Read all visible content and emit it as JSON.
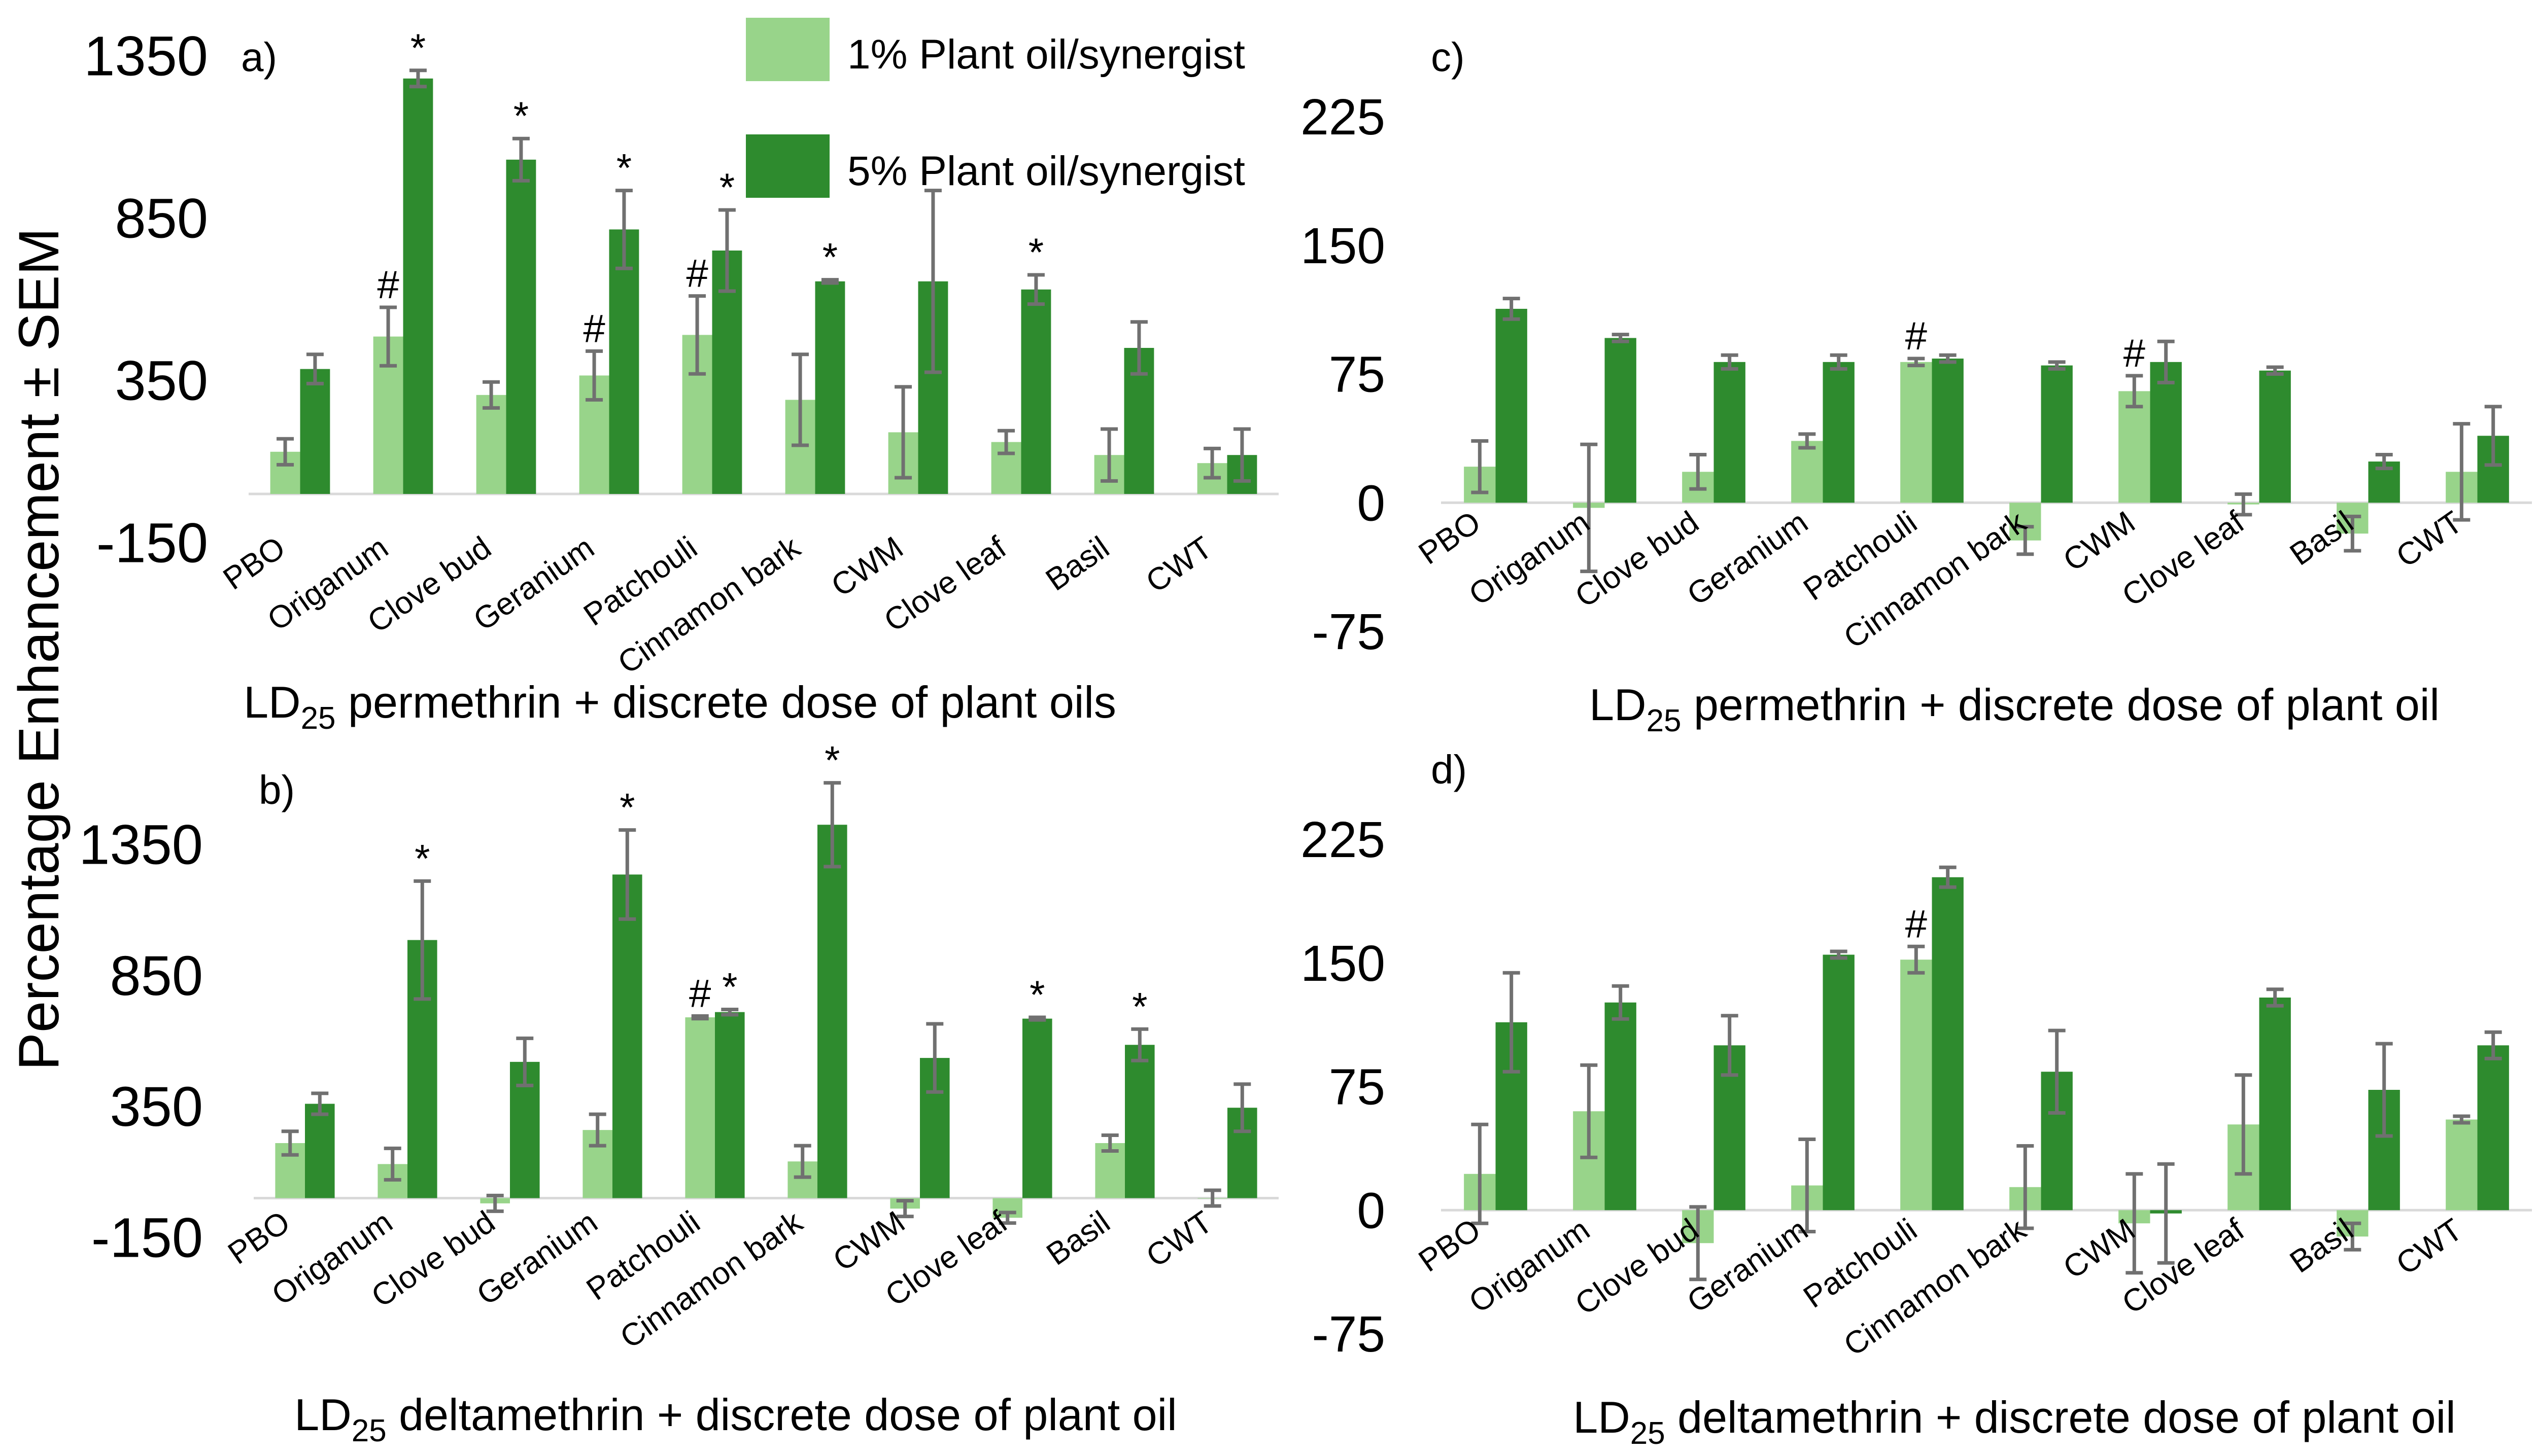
{
  "figure": {
    "y_axis_title": "Percentage Enhancement ± SEM"
  },
  "legend": {
    "items": [
      {
        "label": "1% Plant oil/synergist",
        "color": "#98d48a"
      },
      {
        "label": "5% Plant oil/synergist",
        "color": "#2e8b2e"
      }
    ]
  },
  "chart_data": [
    {
      "type": "bar",
      "panel_label": "a)",
      "title": "",
      "xlabel_main": "LD",
      "xlabel_sub": "25",
      "xlabel_rest": " permethrin + discrete dose of plant oils",
      "ylim": [
        -150,
        1350
      ],
      "yticks": [
        "1350",
        "850",
        "350",
        "-150"
      ],
      "ytick_values": [
        1350,
        850,
        350,
        -150
      ],
      "categories": [
        "PBO",
        "Origanum",
        "Clove bud",
        "Geranium",
        "Patchouli",
        "Cinnamon bark",
        "CWM",
        "Clove leaf",
        "Basil",
        "CWT"
      ],
      "series": [
        {
          "name": "1% Plant oil/synergist",
          "values": [
            130,
            485,
            305,
            365,
            490,
            290,
            190,
            160,
            120,
            95
          ],
          "errors": [
            40,
            90,
            40,
            75,
            120,
            140,
            140,
            35,
            80,
            45
          ],
          "markers": [
            "",
            "#",
            "",
            "#",
            "#",
            "",
            "",
            "",
            "",
            ""
          ]
        },
        {
          "name": "5% Plant oil/synergist",
          "values": [
            385,
            1280,
            1030,
            815,
            750,
            655,
            655,
            630,
            450,
            120
          ],
          "errors": [
            45,
            25,
            65,
            120,
            125,
            5,
            280,
            45,
            80,
            80
          ],
          "markers": [
            "",
            "*",
            "*",
            "*",
            "*",
            "*",
            "",
            "*",
            "",
            ""
          ]
        }
      ]
    },
    {
      "type": "bar",
      "panel_label": "b)",
      "title": "",
      "xlabel_main": "LD",
      "xlabel_sub": "25",
      "xlabel_rest": " deltamethrin + discrete dose of plant oil",
      "ylim": [
        -150,
        1350
      ],
      "yticks": [
        "1350",
        "850",
        "350",
        "-150"
      ],
      "ytick_values": [
        1350,
        850,
        350,
        -150
      ],
      "categories": [
        "PBO",
        "Origanum",
        "Clove bud",
        "Geranium",
        "Patchouli",
        "Cinnamon bark",
        "CWM",
        "Clove leaf",
        "Basil",
        "CWT"
      ],
      "series": [
        {
          "name": "1% Plant oil/synergist",
          "values": [
            210,
            130,
            -20,
            260,
            690,
            140,
            -40,
            -75,
            210,
            0
          ],
          "errors": [
            45,
            60,
            30,
            60,
            5,
            60,
            30,
            20,
            30,
            30
          ],
          "markers": [
            "",
            "",
            "",
            "",
            "#",
            "",
            "",
            "",
            "",
            ""
          ]
        },
        {
          "name": "5% Plant oil/synergist",
          "values": [
            360,
            985,
            520,
            1235,
            710,
            1425,
            535,
            685,
            585,
            345
          ],
          "errors": [
            40,
            225,
            90,
            170,
            10,
            160,
            130,
            5,
            60,
            90
          ],
          "markers": [
            "",
            "*",
            "",
            "*",
            "*",
            "*",
            "",
            "*",
            "*",
            ""
          ]
        }
      ]
    },
    {
      "type": "bar",
      "panel_label": "c)",
      "title": "",
      "xlabel_main": "LD",
      "xlabel_sub": "25",
      "xlabel_rest": " permethrin + discrete dose of plant oil",
      "ylim": [
        -75,
        225
      ],
      "yticks": [
        "225",
        "150",
        "75",
        "0",
        "-75"
      ],
      "ytick_values": [
        225,
        150,
        75,
        0,
        -75
      ],
      "categories": [
        "PBO",
        "Origanum",
        "Clove bud",
        "Geranium",
        "Patchouli",
        "Cinnamon bark",
        "CWM",
        "Clove leaf",
        "Basil",
        "CWT"
      ],
      "series": [
        {
          "name": "1% Plant oil/synergist",
          "values": [
            21,
            -3,
            18,
            36,
            82,
            -22,
            65,
            -1,
            -18,
            18
          ],
          "errors": [
            15,
            37,
            10,
            4,
            2,
            8,
            9,
            6,
            10,
            28
          ],
          "markers": [
            "",
            "",
            "",
            "",
            "#",
            "",
            "#",
            "",
            "",
            ""
          ]
        },
        {
          "name": "5% Plant oil/synergist",
          "values": [
            113,
            96,
            82,
            82,
            84,
            80,
            82,
            77,
            24,
            39
          ],
          "errors": [
            6,
            2,
            4,
            4,
            2,
            2,
            12,
            2,
            4,
            17
          ],
          "markers": [
            "",
            "",
            "",
            "",
            "",
            "",
            "",
            "",
            "",
            ""
          ]
        }
      ]
    },
    {
      "type": "bar",
      "panel_label": "d)",
      "title": "",
      "xlabel_main": "LD",
      "xlabel_sub": "25",
      "xlabel_rest": " deltamethrin + discrete dose of plant oil",
      "ylim": [
        -75,
        225
      ],
      "yticks": [
        "225",
        "150",
        "75",
        "0",
        "-75"
      ],
      "ytick_values": [
        225,
        150,
        75,
        0,
        -75
      ],
      "categories": [
        "PBO",
        "Origanum",
        "Clove bud",
        "Geranium",
        "Patchouli",
        "Cinnamon bark",
        "CWM",
        "Clove leaf",
        "Basil",
        "CWT"
      ],
      "series": [
        {
          "name": "1% Plant oil/synergist",
          "values": [
            22,
            60,
            -20,
            15,
            152,
            14,
            -8,
            52,
            -16,
            55
          ],
          "errors": [
            30,
            28,
            22,
            28,
            8,
            25,
            30,
            30,
            8,
            2
          ],
          "markers": [
            "",
            "",
            "",
            "",
            "#",
            "",
            "",
            "",
            "",
            ""
          ]
        },
        {
          "name": "5% Plant oil/synergist",
          "values": [
            114,
            126,
            100,
            155,
            202,
            84,
            -2,
            129,
            73,
            100
          ],
          "errors": [
            30,
            10,
            18,
            2,
            6,
            25,
            30,
            5,
            28,
            8
          ],
          "markers": [
            "",
            "",
            "",
            "",
            "",
            "",
            "",
            "",
            "",
            ""
          ]
        }
      ]
    }
  ]
}
